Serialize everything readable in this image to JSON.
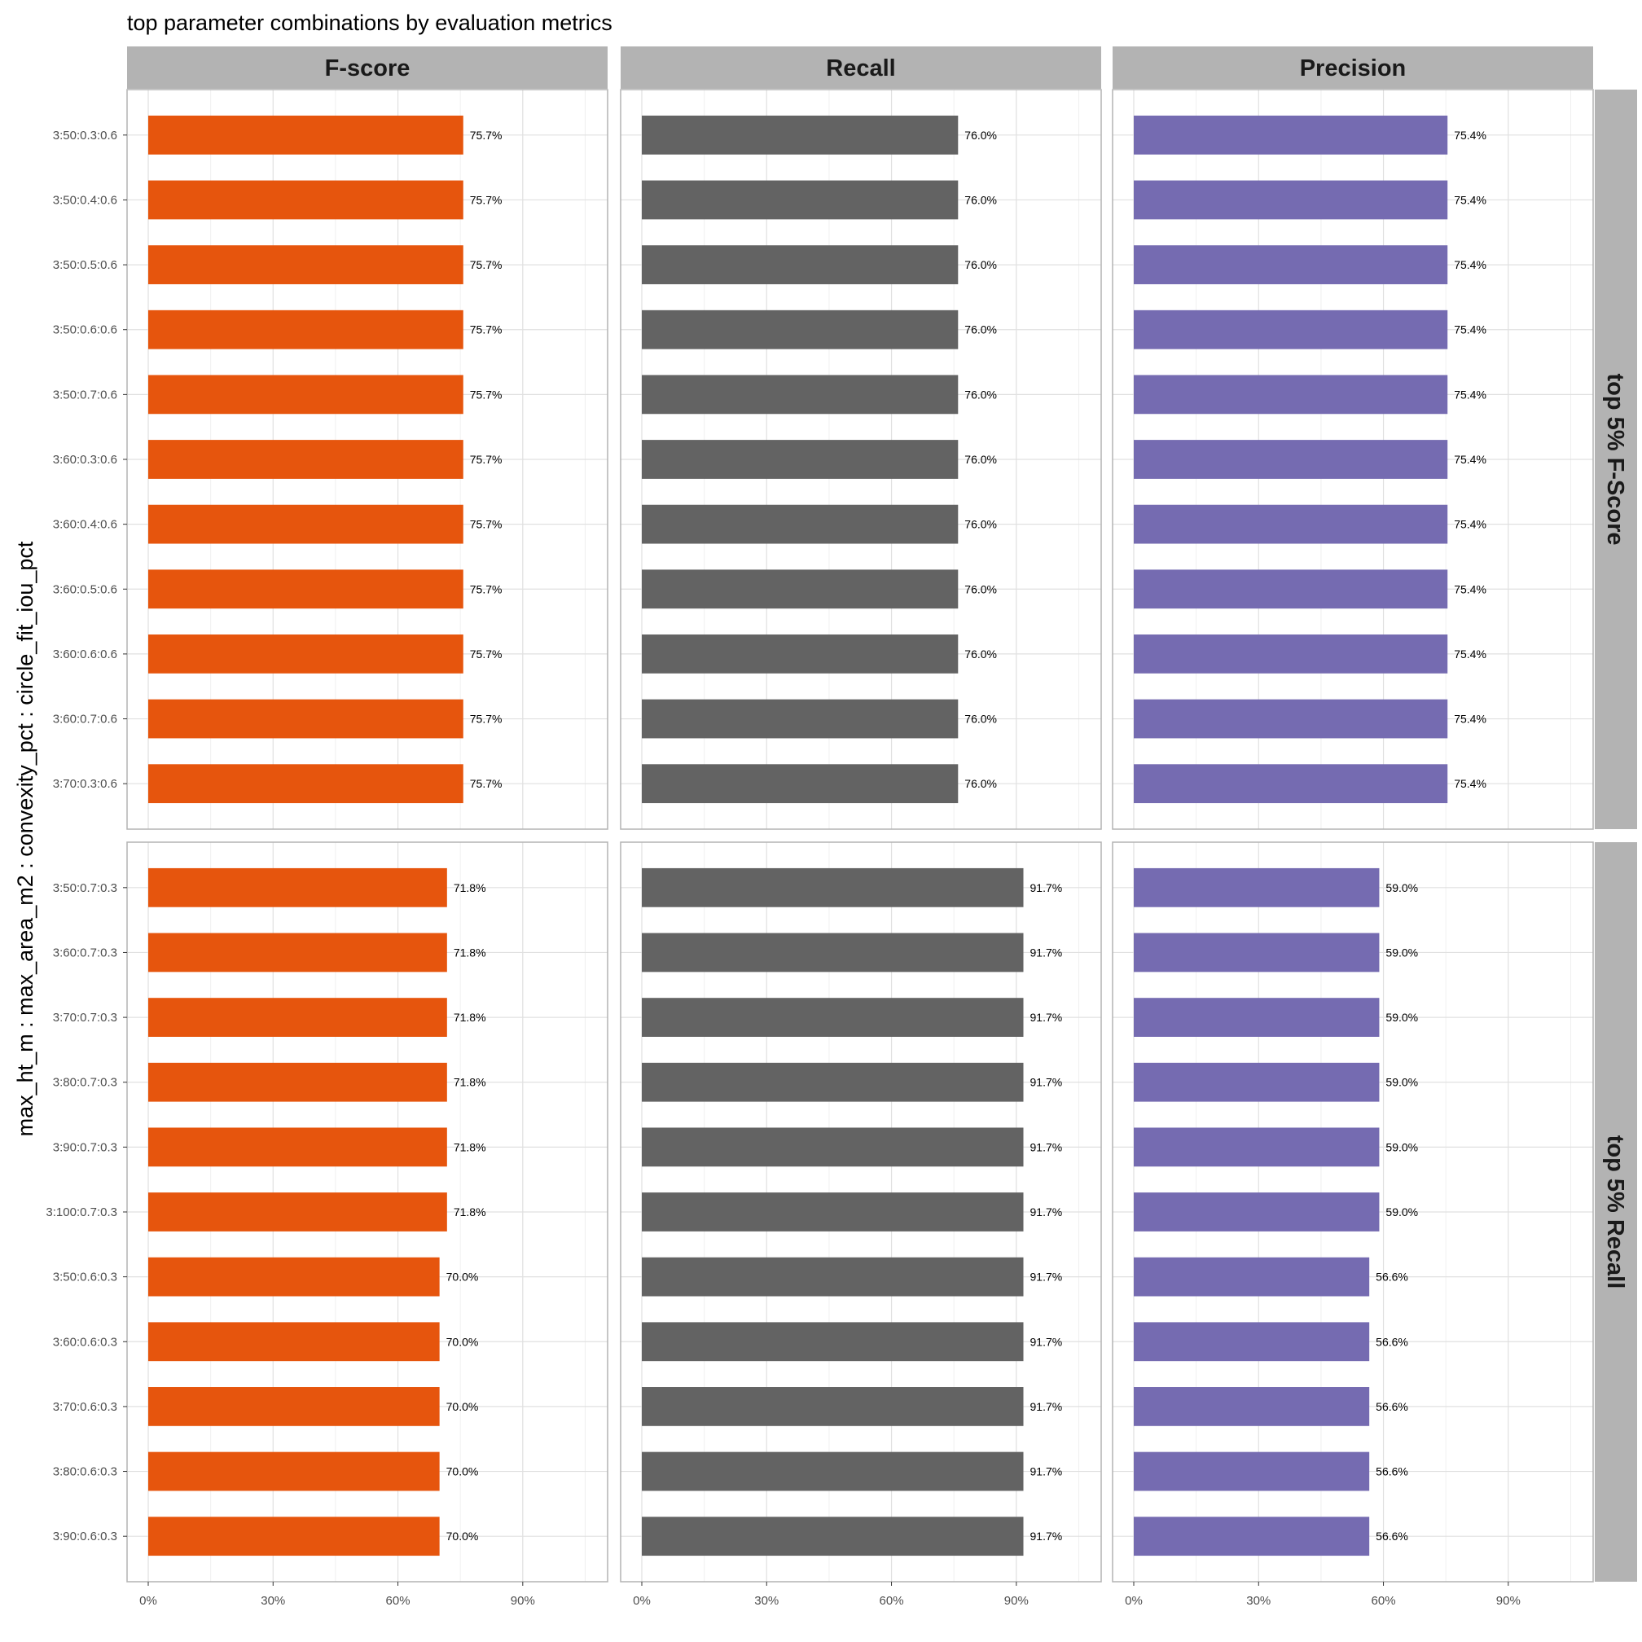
{
  "chart_data": {
    "type": "bar",
    "orientation": "horizontal",
    "title": "top parameter combinations by evaluation metrics",
    "ylabel": "max_ht_m : max_area_m2 : convexity_pct : circle_fit_iou_pct",
    "xlabel": "",
    "xlim": [
      0,
      1.1
    ],
    "x_ticks": [
      0,
      0.3,
      0.6,
      0.9
    ],
    "x_tick_labels": [
      "0%",
      "30%",
      "60%",
      "90%"
    ],
    "grid": true,
    "legend": "none",
    "columns": [
      {
        "name": "F-score",
        "color": "#e6550d"
      },
      {
        "name": "Recall",
        "color": "#636363"
      },
      {
        "name": "Precision",
        "color": "#756bb1"
      }
    ],
    "rows": [
      {
        "name": "top 5% F-Score",
        "categories": [
          "3:50:0.3:0.6",
          "3:50:0.4:0.6",
          "3:50:0.5:0.6",
          "3:50:0.6:0.6",
          "3:50:0.7:0.6",
          "3:60:0.3:0.6",
          "3:60:0.4:0.6",
          "3:60:0.5:0.6",
          "3:60:0.6:0.6",
          "3:60:0.7:0.6",
          "3:70:0.3:0.6"
        ],
        "series": [
          {
            "name": "F-score",
            "values": [
              0.757,
              0.757,
              0.757,
              0.757,
              0.757,
              0.757,
              0.757,
              0.757,
              0.757,
              0.757,
              0.757
            ],
            "labels": [
              "75.7%",
              "75.7%",
              "75.7%",
              "75.7%",
              "75.7%",
              "75.7%",
              "75.7%",
              "75.7%",
              "75.7%",
              "75.7%",
              "75.7%"
            ]
          },
          {
            "name": "Recall",
            "values": [
              0.76,
              0.76,
              0.76,
              0.76,
              0.76,
              0.76,
              0.76,
              0.76,
              0.76,
              0.76,
              0.76
            ],
            "labels": [
              "76.0%",
              "76.0%",
              "76.0%",
              "76.0%",
              "76.0%",
              "76.0%",
              "76.0%",
              "76.0%",
              "76.0%",
              "76.0%",
              "76.0%"
            ]
          },
          {
            "name": "Precision",
            "values": [
              0.754,
              0.754,
              0.754,
              0.754,
              0.754,
              0.754,
              0.754,
              0.754,
              0.754,
              0.754,
              0.754
            ],
            "labels": [
              "75.4%",
              "75.4%",
              "75.4%",
              "75.4%",
              "75.4%",
              "75.4%",
              "75.4%",
              "75.4%",
              "75.4%",
              "75.4%",
              "75.4%"
            ]
          }
        ]
      },
      {
        "name": "top 5% Recall",
        "categories": [
          "3:50:0.7:0.3",
          "3:60:0.7:0.3",
          "3:70:0.7:0.3",
          "3:80:0.7:0.3",
          "3:90:0.7:0.3",
          "3:100:0.7:0.3",
          "3:50:0.6:0.3",
          "3:60:0.6:0.3",
          "3:70:0.6:0.3",
          "3:80:0.6:0.3",
          "3:90:0.6:0.3"
        ],
        "series": [
          {
            "name": "F-score",
            "values": [
              0.718,
              0.718,
              0.718,
              0.718,
              0.718,
              0.718,
              0.7,
              0.7,
              0.7,
              0.7,
              0.7
            ],
            "labels": [
              "71.8%",
              "71.8%",
              "71.8%",
              "71.8%",
              "71.8%",
              "71.8%",
              "70.0%",
              "70.0%",
              "70.0%",
              "70.0%",
              "70.0%"
            ]
          },
          {
            "name": "Recall",
            "values": [
              0.917,
              0.917,
              0.917,
              0.917,
              0.917,
              0.917,
              0.917,
              0.917,
              0.917,
              0.917,
              0.917
            ],
            "labels": [
              "91.7%",
              "91.7%",
              "91.7%",
              "91.7%",
              "91.7%",
              "91.7%",
              "91.7%",
              "91.7%",
              "91.7%",
              "91.7%",
              "91.7%"
            ]
          },
          {
            "name": "Precision",
            "values": [
              0.59,
              0.59,
              0.59,
              0.59,
              0.59,
              0.59,
              0.566,
              0.566,
              0.566,
              0.566,
              0.566
            ],
            "labels": [
              "59.0%",
              "59.0%",
              "59.0%",
              "59.0%",
              "59.0%",
              "59.0%",
              "56.6%",
              "56.6%",
              "56.6%",
              "56.6%",
              "56.6%"
            ]
          }
        ]
      }
    ]
  }
}
